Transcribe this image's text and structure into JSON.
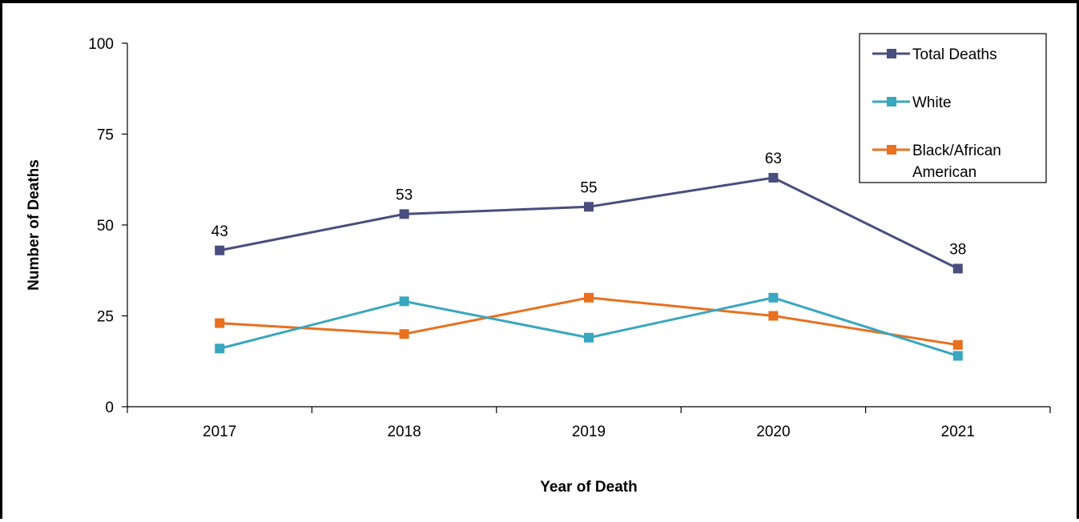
{
  "chart_data": {
    "type": "line",
    "title": "",
    "xlabel": "Year of Death",
    "ylabel": "Number of Deaths",
    "categories": [
      "2017",
      "2018",
      "2019",
      "2020",
      "2021"
    ],
    "ylim": [
      0,
      100
    ],
    "yticks": [
      0,
      25,
      50,
      75,
      100
    ],
    "grid": false,
    "legend_position": "top-right",
    "series": [
      {
        "name": "Total Deaths",
        "values": [
          43,
          53,
          55,
          63,
          38
        ],
        "color": "#4a4e7e",
        "data_labels": true
      },
      {
        "name": "White",
        "values": [
          16,
          29,
          19,
          30,
          14
        ],
        "color": "#3aa6bf",
        "data_labels": false
      },
      {
        "name": "Black/African American",
        "values": [
          23,
          20,
          30,
          25,
          17
        ],
        "color": "#e8701f",
        "data_labels": false
      }
    ]
  }
}
